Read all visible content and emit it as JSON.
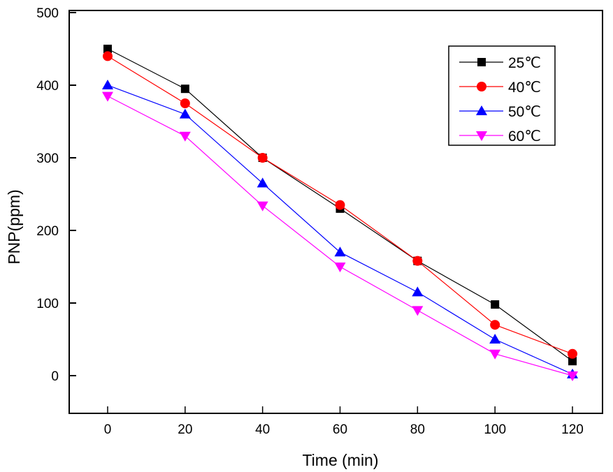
{
  "chart_data": {
    "type": "line",
    "title": "",
    "xlabel": "Time (min)",
    "ylabel": "PNP(ppm)",
    "x": [
      0,
      20,
      40,
      60,
      80,
      100,
      120
    ],
    "xlim": [
      -10,
      128
    ],
    "ylim": [
      -50,
      500
    ],
    "xticks": [
      0,
      20,
      40,
      60,
      80,
      100,
      120
    ],
    "yticks": [
      0,
      100,
      200,
      300,
      400,
      500
    ],
    "grid": false,
    "legend_position": "top-right",
    "series": [
      {
        "name": "25℃",
        "color": "#000000",
        "marker": "square",
        "values": [
          450,
          395,
          300,
          230,
          158,
          98,
          20
        ]
      },
      {
        "name": "40℃",
        "color": "#ff0000",
        "marker": "circle",
        "values": [
          440,
          375,
          300,
          235,
          158,
          70,
          30
        ]
      },
      {
        "name": "50℃",
        "color": "#0000ff",
        "marker": "triangle-up",
        "values": [
          400,
          360,
          265,
          170,
          115,
          50,
          2
        ]
      },
      {
        "name": "60℃",
        "color": "#ff00ff",
        "marker": "triangle-down",
        "values": [
          385,
          330,
          234,
          150,
          90,
          30,
          0
        ]
      }
    ]
  }
}
